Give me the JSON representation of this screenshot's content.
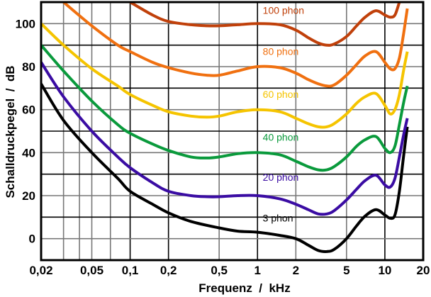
{
  "chart_data": {
    "type": "line",
    "title": "",
    "xlabel": "Frequenz  /  kHz",
    "ylabel": "Schalldruckpegel  /  dB",
    "xscale": "log",
    "xlim": [
      0.02,
      20
    ],
    "ylim": [
      -10,
      110
    ],
    "grid": true,
    "x_ticks": [
      0.02,
      0.05,
      0.1,
      0.2,
      0.5,
      1,
      2,
      5,
      10,
      20
    ],
    "x_tick_labels": [
      "0,02",
      "0,05",
      "0,1",
      "0,2",
      "0,5",
      "1",
      "2",
      "5",
      "10",
      "20"
    ],
    "x_minor_grid": [
      0.03,
      0.04,
      0.07
    ],
    "y_ticks": [
      0,
      20,
      40,
      60,
      80,
      100
    ],
    "y_tick_labels": [
      "0",
      "20",
      "40",
      "60",
      "80",
      "100"
    ],
    "y_minor_grid": [
      -10,
      10,
      30,
      50,
      70,
      90,
      110
    ],
    "series": [
      {
        "name": "3 phon",
        "label": "3 phon",
        "color": "#000000",
        "x": [
          0.02,
          0.03,
          0.05,
          0.08,
          0.1,
          0.15,
          0.2,
          0.3,
          0.5,
          0.7,
          1,
          1.5,
          2,
          2.5,
          3,
          3.5,
          4,
          5,
          6,
          7,
          8.5,
          10,
          11,
          12,
          13,
          14,
          15
        ],
        "y": [
          72,
          55,
          40,
          28,
          22,
          16,
          12,
          8,
          5,
          3.5,
          3,
          1.5,
          0,
          -3,
          -5.5,
          -6,
          -5,
          0,
          6,
          10.5,
          13.5,
          11,
          9.5,
          11,
          22,
          38,
          52
        ]
      },
      {
        "name": "20 phon",
        "label": "20 phon",
        "color": "#3a0ca3",
        "x": [
          0.02,
          0.03,
          0.05,
          0.08,
          0.1,
          0.15,
          0.2,
          0.3,
          0.4,
          0.5,
          0.7,
          1,
          1.5,
          2,
          2.5,
          3,
          3.5,
          4,
          5,
          6,
          7,
          8.5,
          10,
          11,
          12,
          13,
          14,
          15
        ],
        "y": [
          82,
          66,
          50,
          38,
          33,
          26,
          22,
          20,
          19.5,
          19.5,
          20,
          20,
          18.5,
          16,
          13.5,
          11.5,
          11.5,
          13,
          18,
          23,
          27,
          29.5,
          25,
          24,
          28,
          38,
          48,
          56
        ]
      },
      {
        "name": "40 phon",
        "label": "40 phon",
        "color": "#0a9a3c",
        "x": [
          0.02,
          0.03,
          0.05,
          0.08,
          0.1,
          0.15,
          0.2,
          0.3,
          0.4,
          0.5,
          0.7,
          1,
          1.5,
          2,
          2.5,
          3,
          3.5,
          4,
          5,
          6,
          7,
          8.5,
          10,
          11,
          12,
          13,
          14,
          15
        ],
        "y": [
          90,
          78,
          64,
          53,
          49,
          44,
          41,
          38,
          37.5,
          38,
          39.5,
          40,
          39,
          36,
          33.5,
          32,
          32,
          33.5,
          38,
          43,
          46,
          47.5,
          42,
          40,
          43,
          53,
          63,
          71
        ]
      },
      {
        "name": "60 phon",
        "label": "60 phon",
        "color": "#f5c400",
        "x": [
          0.02,
          0.03,
          0.05,
          0.08,
          0.1,
          0.15,
          0.2,
          0.3,
          0.4,
          0.5,
          0.7,
          1,
          1.5,
          2,
          2.5,
          3,
          3.5,
          4,
          5,
          6,
          7,
          8.5,
          10,
          11,
          12,
          13,
          14,
          15
        ],
        "y": [
          100,
          90,
          79,
          71,
          67,
          62,
          59,
          57,
          56.5,
          57,
          59,
          60,
          59,
          56,
          53.5,
          52,
          52,
          53.5,
          58,
          63,
          66,
          67.5,
          62,
          58,
          60,
          67,
          78,
          87
        ]
      },
      {
        "name": "80 phon",
        "label": "80 phon",
        "color": "#f07010",
        "x": [
          0.03,
          0.05,
          0.08,
          0.1,
          0.15,
          0.2,
          0.3,
          0.4,
          0.5,
          0.7,
          1,
          1.5,
          2,
          2.5,
          3,
          3.5,
          4,
          5,
          6,
          7,
          8.5,
          10,
          11,
          12,
          13,
          14,
          15
        ],
        "y": [
          110,
          99,
          90,
          87,
          82,
          79.5,
          77,
          76,
          76,
          78,
          80,
          79.5,
          77,
          74,
          72,
          71,
          71.5,
          76,
          81,
          85,
          87,
          82,
          79,
          79,
          84,
          95,
          107
        ]
      },
      {
        "name": "100 phon",
        "label": "100 phon",
        "color": "#c0400a",
        "x": [
          0.1,
          0.15,
          0.2,
          0.3,
          0.4,
          0.5,
          0.7,
          1,
          1.5,
          2,
          2.5,
          3,
          3.5,
          4,
          5,
          6,
          7,
          8.5,
          10,
          11,
          12,
          13
        ],
        "y": [
          110,
          104,
          101,
          99.5,
          99,
          99,
          99.5,
          100,
          99.5,
          97,
          93.5,
          91,
          90,
          90.5,
          94,
          99,
          103,
          106,
          104,
          103,
          104,
          110
        ]
      }
    ]
  }
}
